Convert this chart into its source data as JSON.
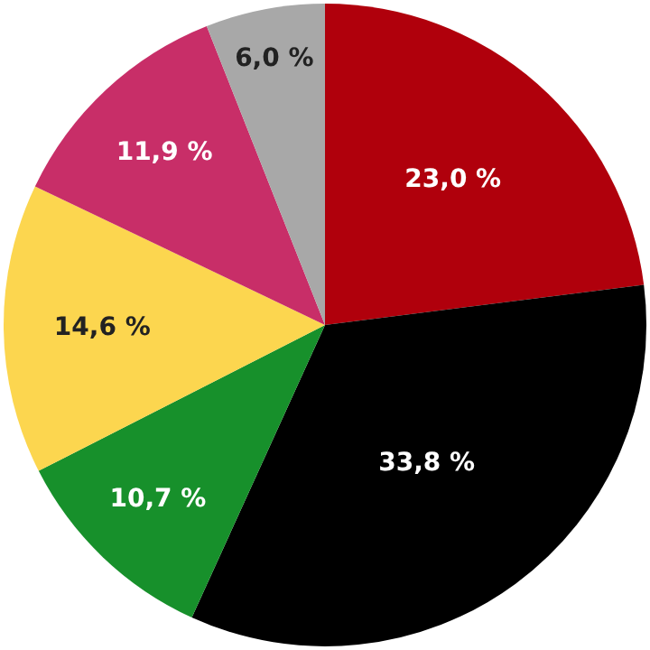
{
  "chart_data": {
    "type": "pie",
    "categories": [
      null,
      null,
      null,
      null,
      null,
      null
    ],
    "values": [
      23.0,
      33.8,
      10.7,
      14.6,
      11.9,
      6.0
    ],
    "colors": [
      "#b0000c",
      "#000000",
      "#17902b",
      "#fcd64f",
      "#c82e68",
      "#a8a8a8"
    ],
    "value_labels": [
      "23,0 %",
      "33,8 %",
      "10,7 %",
      "14,6 %",
      "11,9 %",
      "6,0 %"
    ],
    "legend": false
  }
}
